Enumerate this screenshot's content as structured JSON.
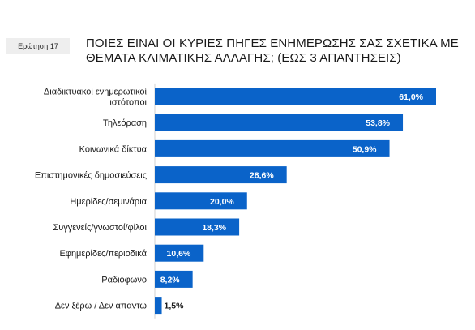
{
  "question_badge": "Ερώτηση 17",
  "title_line1": "ΠΟΙΕΣ ΕΙΝΑΙ ΟΙ ΚΥΡΙΕΣ ΠΗΓΕΣ ΕΝΗΜΕΡΩΣΗΣ ΣΑΣ ΣΧΕΤΙΚΑ ΜΕ",
  "title_line2": "ΘΕΜΑΤΑ ΚΛΙΜΑΤΙΚΗΣ ΑΛΛΑΓΗΣ; (ΕΩΣ 3 ΑΠΑΝΤΗΣΕΙΣ)",
  "colors": {
    "bar": "#0a63c9",
    "value_inside": "#ffffff",
    "value_outside": "#1a1a1a"
  },
  "chart_data": {
    "type": "bar",
    "orientation": "horizontal",
    "categories": [
      [
        "Διαδικτυακοί ενημερωτικοί",
        "ιστότοποι"
      ],
      [
        "Τηλεόραση"
      ],
      [
        "Κοινωνικά δίκτυα"
      ],
      [
        "Επιστημονικές δημοσιεύσεις"
      ],
      [
        "Ημερίδες/σεμινάρια"
      ],
      [
        "Συγγενείς/γνωστοί/φίλοι"
      ],
      [
        "Εφημερίδες/περιοδικά"
      ],
      [
        "Ραδιόφωνο"
      ],
      [
        "Δεν ξέρω / Δεν απαντώ"
      ]
    ],
    "values": [
      61.0,
      53.8,
      50.9,
      28.6,
      20.0,
      18.3,
      10.6,
      8.2,
      1.5
    ],
    "value_labels": [
      "61,0%",
      "53,8%",
      "50,9%",
      "28,6%",
      "20,0%",
      "18,3%",
      "10,6%",
      "8,2%",
      "1,5%"
    ],
    "xlim": [
      0,
      61.0
    ],
    "grid": false,
    "legend": "none"
  }
}
